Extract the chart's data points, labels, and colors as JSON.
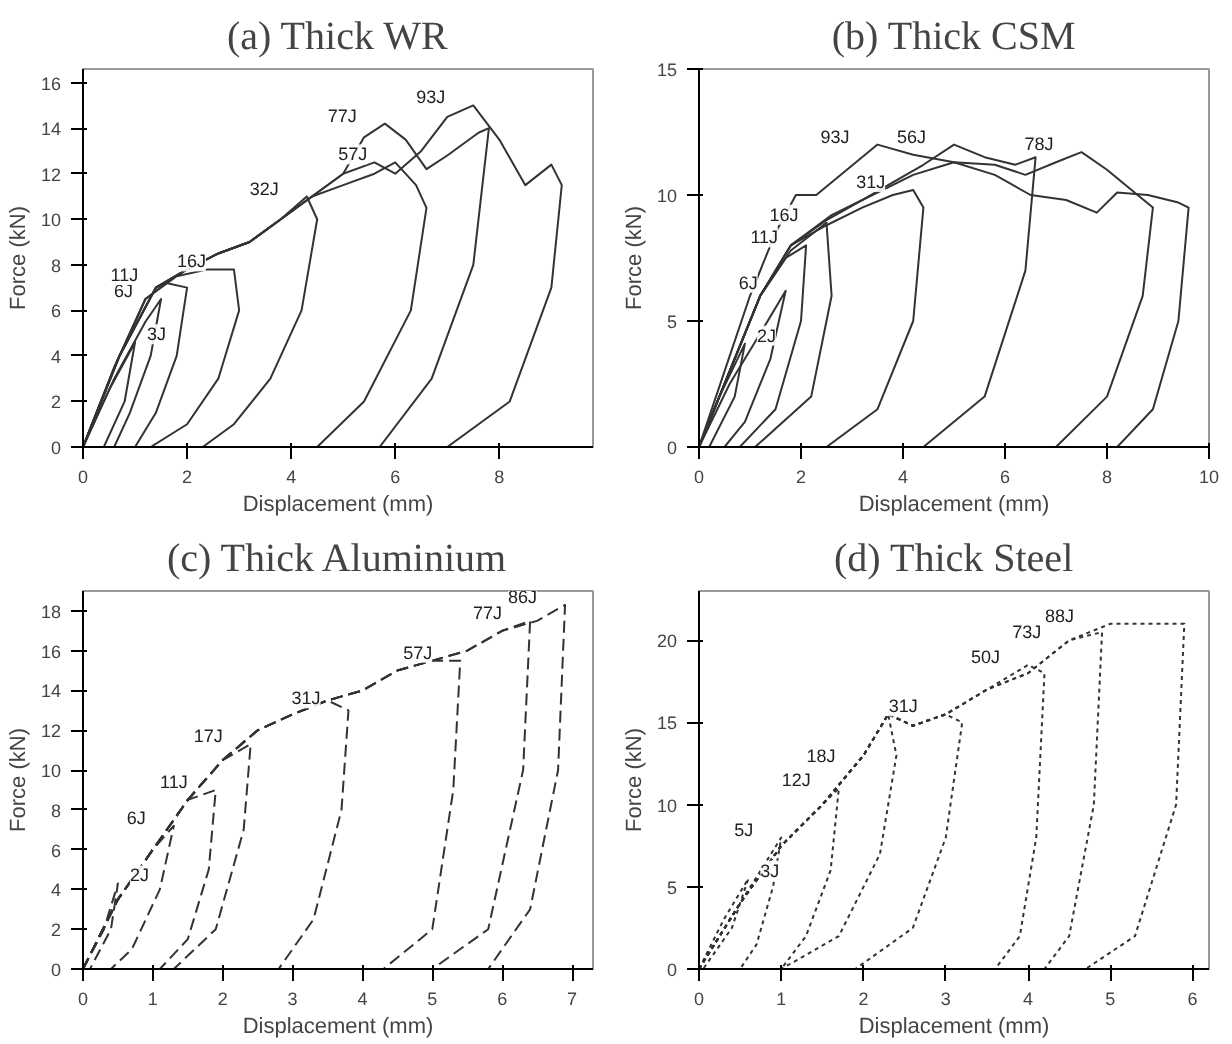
{
  "chart_data": [
    {
      "type": "line",
      "title": "(a) Thick WR",
      "xlabel": "Displacement (mm)",
      "ylabel": "Force (kN)",
      "xlim": [
        0,
        9.8
      ],
      "ylim": [
        0,
        16.6
      ],
      "xticks": [
        0,
        2,
        4,
        6,
        8
      ],
      "yticks": [
        0,
        2,
        4,
        6,
        8,
        10,
        12,
        14,
        16
      ],
      "grid": false,
      "line_style": "solid",
      "series": [
        {
          "color": "#333333",
          "x": [
            0,
            0.5,
            1.0,
            0.8,
            0.4
          ],
          "values": [
            0,
            2.5,
            4.6,
            2,
            0
          ]
        },
        {
          "color": "#333333",
          "x": [
            0,
            0.6,
            1.2,
            1.5,
            1.3,
            0.9,
            0.6
          ],
          "values": [
            0,
            3,
            5.5,
            6.5,
            4,
            1.5,
            0
          ]
        },
        {
          "color": "#333333",
          "x": [
            0,
            0.6,
            1.2,
            1.6,
            2.0,
            1.8,
            1.4,
            1.0
          ],
          "values": [
            0,
            3.5,
            6.5,
            7.2,
            7.0,
            4,
            1.5,
            0
          ]
        },
        {
          "color": "#333333",
          "x": [
            0,
            0.6,
            1.2,
            1.8,
            2.4,
            2.9,
            3.0,
            2.6,
            2.0,
            1.3
          ],
          "values": [
            0,
            3.5,
            6.5,
            7.5,
            7.8,
            7.8,
            6,
            3,
            1,
            0
          ]
        },
        {
          "color": "#333333",
          "x": [
            0,
            0.7,
            1.4,
            2,
            2.6,
            3.2,
            3.8,
            4.3,
            4.5,
            4.2,
            3.6,
            2.9,
            2.3
          ],
          "values": [
            0,
            4,
            7,
            7.8,
            8.5,
            9,
            10,
            11,
            10,
            6,
            3,
            1,
            0
          ]
        },
        {
          "color": "#333333",
          "x": [
            0,
            0.7,
            1.4,
            2,
            2.6,
            3.2,
            3.8,
            4.4,
            5,
            5.6,
            6.0,
            6.4,
            6.6,
            6.3,
            5.4,
            4.5
          ],
          "values": [
            0,
            4,
            7,
            7.8,
            8.5,
            9,
            10,
            11,
            11.5,
            12,
            12.5,
            11.5,
            10.5,
            6,
            2,
            0
          ]
        },
        {
          "color": "#333333",
          "x": [
            0,
            0.7,
            1.4,
            2,
            2.6,
            3.2,
            3.8,
            4.4,
            5,
            5.4,
            5.8,
            6.2,
            6.6,
            7,
            7.6,
            7.8,
            7.5,
            6.7,
            5.7
          ],
          "values": [
            0,
            4,
            7,
            7.8,
            8.5,
            9,
            10,
            11,
            12,
            13.6,
            14.2,
            13.5,
            12.2,
            12.8,
            13.8,
            14,
            8,
            3,
            0
          ]
        },
        {
          "color": "#333333",
          "x": [
            0,
            0.7,
            1.4,
            2,
            2.6,
            3.2,
            3.8,
            4.4,
            5,
            5.6,
            6,
            6.5,
            7,
            7.5,
            8,
            8.5,
            9,
            9.2,
            9.0,
            8.2,
            7.0
          ],
          "values": [
            0,
            4,
            7,
            7.8,
            8.5,
            9,
            10,
            11,
            12,
            12.5,
            12,
            13,
            14.5,
            15,
            13.5,
            11.5,
            12.4,
            11.5,
            7,
            2,
            0
          ]
        }
      ],
      "annotations": [
        {
          "text": "3J",
          "x": 1.0,
          "y": 4.6
        },
        {
          "text": "6J",
          "x": 1.5,
          "y": 6.5
        },
        {
          "text": "11J",
          "x": 1.6,
          "y": 7.2
        },
        {
          "text": "16J",
          "x": 2.9,
          "y": 7.8
        },
        {
          "text": "32J",
          "x": 4.3,
          "y": 11
        },
        {
          "text": "57J",
          "x": 6.0,
          "y": 12.5
        },
        {
          "text": "77J",
          "x": 5.8,
          "y": 14.2
        },
        {
          "text": "93J",
          "x": 7.5,
          "y": 15
        }
      ]
    },
    {
      "type": "line",
      "title": "(b) Thick CSM",
      "xlabel": "Displacement (mm)",
      "ylabel": "Force (kN)",
      "xlim": [
        0,
        10
      ],
      "ylim": [
        0,
        15
      ],
      "xticks": [
        0,
        2,
        4,
        6,
        8,
        10
      ],
      "yticks": [
        0,
        5,
        10,
        15
      ],
      "grid": false,
      "line_style": "solid",
      "series": [
        {
          "color": "#333333",
          "x": [
            0,
            0.4,
            0.9,
            0.7,
            0.2
          ],
          "values": [
            0,
            2,
            4.1,
            2,
            0
          ]
        },
        {
          "color": "#333333",
          "x": [
            0,
            0.6,
            1.2,
            1.7,
            1.4,
            0.9,
            0.5
          ],
          "values": [
            0,
            2.5,
            4.5,
            6.2,
            3.5,
            1,
            0
          ]
        },
        {
          "color": "#333333",
          "x": [
            0,
            0.6,
            1.2,
            1.7,
            2.1,
            2.0,
            1.5,
            0.8
          ],
          "values": [
            0,
            3,
            6,
            7.5,
            8.0,
            5,
            1.5,
            0
          ]
        },
        {
          "color": "#333333",
          "x": [
            0,
            0.6,
            1.2,
            1.8,
            2.5,
            2.6,
            2.2,
            1.1
          ],
          "values": [
            0,
            3,
            6,
            7.8,
            8.9,
            6,
            2,
            0
          ]
        },
        {
          "color": "#333333",
          "x": [
            0,
            0.6,
            1.2,
            1.8,
            2.5,
            3.2,
            3.8,
            4.2,
            4.4,
            4.2,
            3.5,
            2.5
          ],
          "values": [
            0,
            3,
            6,
            8,
            8.8,
            9.5,
            10,
            10.2,
            9.5,
            5,
            1.5,
            0
          ]
        },
        {
          "color": "#333333",
          "x": [
            0,
            0.6,
            1.2,
            1.8,
            2.5,
            3.2,
            3.8,
            4.4,
            5.0,
            5.6,
            6.2,
            6.6,
            6.4,
            5.6,
            4.4
          ],
          "values": [
            0,
            3,
            6,
            8,
            9,
            9.8,
            10.5,
            11.2,
            12,
            11.5,
            11.2,
            11.5,
            7,
            2,
            0
          ]
        },
        {
          "color": "#333333",
          "x": [
            0,
            0.6,
            1.2,
            1.8,
            2.6,
            3.4,
            4.2,
            5,
            5.8,
            6.4,
            7,
            7.5,
            8.0,
            8.6,
            8.9,
            8.7,
            8.0,
            7.0
          ],
          "values": [
            0,
            3,
            6,
            8,
            9.2,
            10,
            10.8,
            11.3,
            11.2,
            10.8,
            11.3,
            11.7,
            11,
            10,
            9.5,
            6,
            2,
            0
          ]
        },
        {
          "color": "#333333",
          "x": [
            0,
            0.5,
            1.0,
            1.5,
            1.9,
            2.3,
            2.9,
            3.5,
            4.2,
            5,
            5.8,
            6.5,
            7.2,
            7.8,
            8.2,
            8.8,
            9.4,
            9.6,
            9.4,
            8.9,
            8.2
          ],
          "values": [
            0,
            3,
            6,
            8.5,
            10,
            10,
            11,
            12,
            11.6,
            11.3,
            10.8,
            10,
            9.8,
            9.3,
            10.1,
            10,
            9.7,
            9.5,
            5,
            1.5,
            0
          ]
        }
      ],
      "annotations": [
        {
          "text": "2J",
          "x": 0.9,
          "y": 4.1
        },
        {
          "text": "6J",
          "x": 1.7,
          "y": 6.2
        },
        {
          "text": "11J",
          "x": 2.1,
          "y": 8.0
        },
        {
          "text": "16J",
          "x": 2.5,
          "y": 8.9
        },
        {
          "text": "31J",
          "x": 4.2,
          "y": 10.2
        },
        {
          "text": "93J",
          "x": 3.5,
          "y": 12
        },
        {
          "text": "56J",
          "x": 5.0,
          "y": 12
        },
        {
          "text": "78J",
          "x": 7.5,
          "y": 11.7
        }
      ]
    },
    {
      "type": "line",
      "title": "(c) Thick Aluminium",
      "xlabel": "Displacement (mm)",
      "ylabel": "Force (kN)",
      "xlim": [
        0,
        7.3
      ],
      "ylim": [
        0,
        19
      ],
      "xticks": [
        0,
        1,
        2,
        3,
        4,
        5,
        6,
        7
      ],
      "yticks": [
        0,
        2,
        4,
        6,
        8,
        10,
        12,
        14,
        16,
        18
      ],
      "grid": false,
      "line_style": "dashed",
      "series": [
        {
          "color": "#333333",
          "x": [
            0,
            0.3,
            0.5,
            0.4,
            0.1
          ],
          "values": [
            0,
            2,
            4.3,
            2,
            0
          ]
        },
        {
          "color": "#333333",
          "x": [
            0,
            0.5,
            1.0,
            1.3,
            1.1,
            0.7,
            0.4
          ],
          "values": [
            0,
            3.5,
            6,
            7.2,
            4,
            1,
            0
          ]
        },
        {
          "color": "#333333",
          "x": [
            0,
            0.5,
            1,
            1.5,
            1.9,
            1.8,
            1.5,
            1.1
          ],
          "values": [
            0,
            3.5,
            6,
            8.5,
            9,
            5,
            1.5,
            0
          ]
        },
        {
          "color": "#333333",
          "x": [
            0,
            0.5,
            1,
            1.5,
            2,
            2.4,
            2.3,
            1.9,
            1.3
          ],
          "values": [
            0,
            3.5,
            6,
            8.5,
            10.5,
            11.3,
            7,
            2,
            0
          ]
        },
        {
          "color": "#333333",
          "x": [
            0,
            0.5,
            1,
            1.5,
            2,
            2.5,
            3,
            3.5,
            3.8,
            3.7,
            3.3,
            2.8
          ],
          "values": [
            0,
            3.5,
            6,
            8.5,
            10.5,
            12,
            12.8,
            13.5,
            13,
            8,
            2.5,
            0
          ]
        },
        {
          "color": "#333333",
          "x": [
            0,
            0.5,
            1,
            1.5,
            2,
            2.5,
            3,
            3.5,
            4,
            4.5,
            5,
            5.4,
            5.3,
            5.0,
            4.3
          ],
          "values": [
            0,
            3.5,
            6,
            8.5,
            10.5,
            12,
            12.8,
            13.5,
            14,
            15,
            15.5,
            15.5,
            9,
            2,
            0
          ]
        },
        {
          "color": "#333333",
          "x": [
            0,
            0.5,
            1,
            1.5,
            2,
            2.5,
            3,
            3.5,
            4,
            4.5,
            5,
            5.5,
            6,
            6.4,
            6.3,
            5.8,
            5.0
          ],
          "values": [
            0,
            3.5,
            6,
            8.5,
            10.5,
            12,
            12.8,
            13.5,
            14,
            15,
            15.5,
            16,
            17,
            17.5,
            10,
            2,
            0
          ]
        },
        {
          "color": "#333333",
          "x": [
            0,
            0.5,
            1,
            1.5,
            2,
            2.5,
            3,
            3.5,
            4,
            4.5,
            5,
            5.5,
            6,
            6.5,
            6.9,
            6.8,
            6.4,
            5.8
          ],
          "values": [
            0,
            3.5,
            6,
            8.5,
            10.5,
            12,
            12.8,
            13.5,
            14,
            15,
            15.5,
            16,
            17,
            17.5,
            18.3,
            10,
            3,
            0
          ]
        }
      ],
      "annotations": [
        {
          "text": "2J",
          "x": 0.5,
          "y": 4.3
        },
        {
          "text": "6J",
          "x": 1.3,
          "y": 7.2
        },
        {
          "text": "11J",
          "x": 1.9,
          "y": 9
        },
        {
          "text": "17J",
          "x": 2.4,
          "y": 11.3
        },
        {
          "text": "31J",
          "x": 3.8,
          "y": 13.2
        },
        {
          "text": "57J",
          "x": 5.4,
          "y": 15.5
        },
        {
          "text": "77J",
          "x": 6.4,
          "y": 17.5
        },
        {
          "text": "86J",
          "x": 6.9,
          "y": 18.3
        }
      ]
    },
    {
      "type": "line",
      "title": "(d) Thick Steel",
      "xlabel": "Displacement (mm)",
      "ylabel": "Force (kN)",
      "xlim": [
        0,
        6.2
      ],
      "ylim": [
        0,
        23
      ],
      "xticks": [
        0,
        1,
        2,
        3,
        4,
        5,
        6
      ],
      "yticks": [
        0,
        5,
        10,
        15,
        20
      ],
      "grid": false,
      "line_style": "dotted",
      "series": [
        {
          "color": "#333333",
          "x": [
            0,
            0.3,
            0.6,
            0.4,
            0.05
          ],
          "values": [
            0,
            3,
            5.5,
            2.5,
            0
          ]
        },
        {
          "color": "#333333",
          "x": [
            0,
            0.5,
            1.0,
            0.9,
            0.7,
            0.5
          ],
          "values": [
            0,
            4,
            8,
            5,
            1.5,
            0
          ]
        },
        {
          "color": "#333333",
          "x": [
            0,
            0.5,
            1,
            1.5,
            1.7,
            1.6,
            1.3,
            1.0
          ],
          "values": [
            0,
            4,
            7.5,
            10,
            11,
            6,
            2,
            0
          ]
        },
        {
          "color": "#333333",
          "x": [
            0,
            0.5,
            1,
            1.5,
            2,
            2.3,
            2.4,
            2.2,
            1.7,
            1.0
          ],
          "values": [
            0,
            4,
            7.5,
            10,
            13,
            15.5,
            13,
            7,
            2,
            0
          ]
        },
        {
          "color": "#333333",
          "x": [
            0,
            0.5,
            1,
            1.5,
            2,
            2.3,
            2.6,
            3,
            3.2,
            3.0,
            2.6,
            1.9
          ],
          "values": [
            0,
            4,
            7.5,
            10,
            13,
            15.5,
            14.8,
            15.5,
            15,
            8,
            2.5,
            0
          ]
        },
        {
          "color": "#333333",
          "x": [
            0,
            0.5,
            1,
            1.5,
            2,
            2.3,
            2.6,
            3,
            3.5,
            4,
            4.2,
            4.1,
            3.9,
            3.6
          ],
          "values": [
            0,
            4,
            7.5,
            10,
            13,
            15.5,
            14.8,
            15.5,
            17,
            18.5,
            18,
            8,
            2,
            0
          ]
        },
        {
          "color": "#333333",
          "x": [
            0,
            0.5,
            1,
            1.5,
            2,
            2.3,
            2.6,
            3,
            3.5,
            4,
            4.5,
            4.9,
            4.8,
            4.5,
            4.2
          ],
          "values": [
            0,
            4,
            7.5,
            10,
            13,
            15.5,
            14.8,
            15.5,
            17,
            18,
            20,
            20.5,
            10,
            2,
            0
          ]
        },
        {
          "color": "#333333",
          "x": [
            0,
            0.5,
            1,
            1.5,
            2,
            2.3,
            2.6,
            3,
            3.5,
            4,
            4.5,
            5,
            5.5,
            5.9,
            5.8,
            5.3,
            4.7
          ],
          "values": [
            0,
            4,
            7.5,
            10,
            13,
            15.5,
            14.8,
            15.5,
            17,
            18,
            20,
            21,
            21,
            21,
            10,
            2,
            0
          ]
        }
      ],
      "annotations": [
        {
          "text": "3J",
          "x": 0.6,
          "y": 5.5
        },
        {
          "text": "5J",
          "x": 1.0,
          "y": 8
        },
        {
          "text": "12J",
          "x": 1.7,
          "y": 11
        },
        {
          "text": "18J",
          "x": 2.0,
          "y": 12.5
        },
        {
          "text": "31J",
          "x": 3.0,
          "y": 15.5
        },
        {
          "text": "50J",
          "x": 4.0,
          "y": 18.5
        },
        {
          "text": "73J",
          "x": 4.5,
          "y": 20
        },
        {
          "text": "88J",
          "x": 4.9,
          "y": 21
        }
      ]
    }
  ]
}
